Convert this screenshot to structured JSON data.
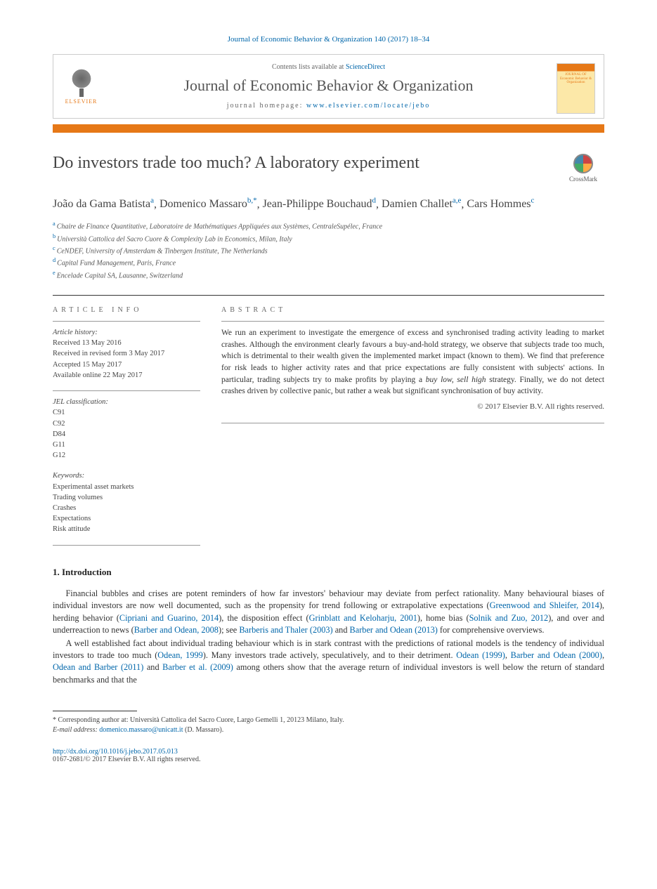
{
  "citation": "Journal of Economic Behavior & Organization 140 (2017) 18–34",
  "header": {
    "contents_prefix": "Contents lists available at ",
    "contents_link": "ScienceDirect",
    "journal_name": "Journal of Economic Behavior & Organization",
    "homepage_prefix": "journal homepage: ",
    "homepage_url": "www.elsevier.com/locate/jebo",
    "publisher": "ELSEVIER",
    "cover_text": "JOURNAL OF Economic Behavior & Organization"
  },
  "title": "Do investors trade too much? A laboratory experiment",
  "crossmark": "CrossMark",
  "authors": [
    {
      "name": "João da Gama Batista",
      "sup": "a"
    },
    {
      "name": "Domenico Massaro",
      "sup": "b,*"
    },
    {
      "name": "Jean-Philippe Bouchaud",
      "sup": "d"
    },
    {
      "name": "Damien Challet",
      "sup": "a,e"
    },
    {
      "name": "Cars Hommes",
      "sup": "c"
    }
  ],
  "affiliations": [
    {
      "sup": "a",
      "text": "Chaire de Finance Quantitative, Laboratoire de Mathématiques Appliquées aux Systèmes, CentraleSupélec, France"
    },
    {
      "sup": "b",
      "text": "Università Cattolica del Sacro Cuore & Complexity Lab in Economics, Milan, Italy"
    },
    {
      "sup": "c",
      "text": "CeNDEF, University of Amsterdam & Tinbergen Institute, The Netherlands"
    },
    {
      "sup": "d",
      "text": "Capital Fund Management, Paris, France"
    },
    {
      "sup": "e",
      "text": "Encelade Capital SA, Lausanne, Switzerland"
    }
  ],
  "article_info": {
    "label": "article info",
    "history_label": "Article history:",
    "received": "Received 13 May 2016",
    "revised": "Received in revised form 3 May 2017",
    "accepted": "Accepted 15 May 2017",
    "online": "Available online 22 May 2017",
    "jel_label": "JEL classification:",
    "jel": [
      "C91",
      "C92",
      "D84",
      "G11",
      "G12"
    ],
    "keywords_label": "Keywords:",
    "keywords": [
      "Experimental asset markets",
      "Trading volumes",
      "Crashes",
      "Expectations",
      "Risk attitude"
    ]
  },
  "abstract": {
    "label": "abstract",
    "text": "We run an experiment to investigate the emergence of excess and synchronised trading activity leading to market crashes. Although the environment clearly favours a buy-and-hold strategy, we observe that subjects trade too much, which is detrimental to their wealth given the implemented market impact (known to them). We find that preference for risk leads to higher activity rates and that price expectations are fully consistent with subjects' actions. In particular, trading subjects try to make profits by playing a buy low, sell high strategy. Finally, we do not detect crashes driven by collective panic, but rather a weak but significant synchronisation of buy activity.",
    "em_phrase": "buy low, sell high",
    "copyright": "© 2017 Elsevier B.V. All rights reserved."
  },
  "intro": {
    "heading": "1.  Introduction",
    "p1_a": "Financial bubbles and crises are potent reminders of how far investors' behaviour may deviate from perfect rationality. Many behavioural biases of individual investors are now well documented, such as the propensity for trend following or extrapolative expectations (",
    "p1_l1": "Greenwood and Shleifer, 2014",
    "p1_b": "), herding behavior (",
    "p1_l2": "Cipriani and Guarino, 2014",
    "p1_c": "), the disposition effect (",
    "p1_l3": "Grinblatt and Keloharju, 2001",
    "p1_d": "), home bias (",
    "p1_l4": "Solnik and Zuo, 2012",
    "p1_e": "), and over and underreaction to news (",
    "p1_l5": "Barber and Odean, 2008",
    "p1_f": "); see ",
    "p1_l6": "Barberis and Thaler (2003)",
    "p1_g": " and ",
    "p1_l7": "Barber and Odean (2013)",
    "p1_h": " for comprehensive overviews.",
    "p2_a": "A well established fact about individual trading behaviour which is in stark contrast with the predictions of rational models is the tendency of individual investors to trade too much (",
    "p2_l1": "Odean, 1999",
    "p2_b": "). Many investors trade actively, speculatively, and to their detriment. ",
    "p2_l2": "Odean (1999)",
    "p2_c": ", ",
    "p2_l3": "Barber and Odean (2000)",
    "p2_d": ", ",
    "p2_l4": "Odean and Barber (2011)",
    "p2_e": " and ",
    "p2_l5": "Barber et al. (2009)",
    "p2_f": " among others show that the average return of individual investors is well below the return of standard benchmarks and that the"
  },
  "footnote": {
    "corr": "* Corresponding author at: Università Cattolica del Sacro Cuore, Largo Gemelli 1, 20123 Milano, Italy.",
    "email_label": "E-mail address: ",
    "email": "domenico.massaro@unicatt.it",
    "email_suffix": " (D. Massaro)."
  },
  "doi": "http://dx.doi.org/10.1016/j.jebo.2017.05.013",
  "rights": "0167-2681/© 2017 Elsevier B.V. All rights reserved.",
  "colors": {
    "accent": "#e67817",
    "link": "#0066aa"
  }
}
